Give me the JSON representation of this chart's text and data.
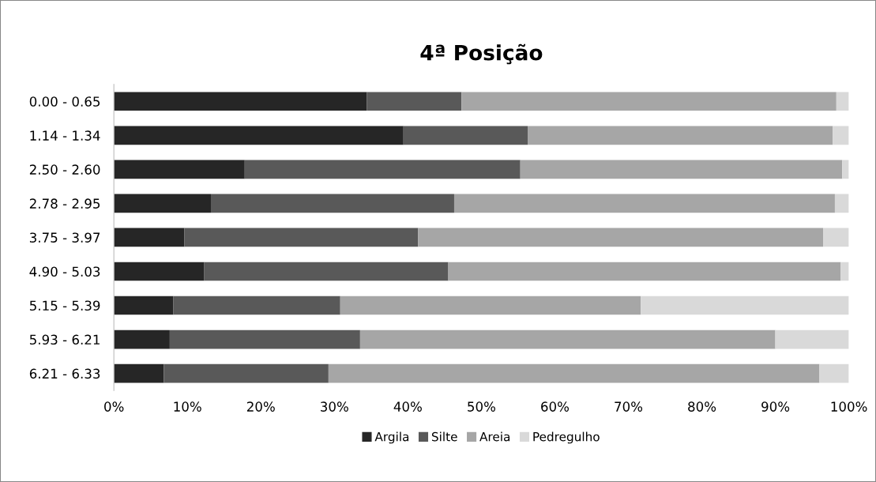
{
  "chart_data": {
    "type": "bar",
    "title": "4ª Posição",
    "orientation": "horizontal",
    "stacked": true,
    "categories": [
      "0.00 - 0.65",
      "1.14 - 1.34",
      "2.50 - 2.60",
      "2.78 - 2.95",
      "3.75 - 3.97",
      "4.90 - 5.03",
      "5.15 - 5.39",
      "5.93 - 6.21",
      "6.21 - 6.33"
    ],
    "series": [
      {
        "name": "Argila",
        "color": "#262626",
        "values": [
          34.4,
          39.4,
          17.8,
          13.2,
          9.6,
          12.3,
          8.1,
          7.6,
          6.8
        ]
      },
      {
        "name": "Silte",
        "color": "#595959",
        "values": [
          12.9,
          16.9,
          37.5,
          33.1,
          31.8,
          33.2,
          22.7,
          25.9,
          22.4
        ]
      },
      {
        "name": "Areia",
        "color": "#a6a6a6",
        "values": [
          51.0,
          41.5,
          43.8,
          51.8,
          55.1,
          53.4,
          40.9,
          56.5,
          66.8
        ]
      },
      {
        "name": "Pedregulho",
        "color": "#d9d9d9",
        "values": [
          1.7,
          2.2,
          0.9,
          1.9,
          3.5,
          1.1,
          28.3,
          10.0,
          4.0
        ]
      }
    ],
    "xlim": [
      0,
      100
    ],
    "xticks": [
      {
        "value": 0,
        "label": "0%"
      },
      {
        "value": 10,
        "label": "10%"
      },
      {
        "value": 20,
        "label": "20%"
      },
      {
        "value": 30,
        "label": "30%"
      },
      {
        "value": 40,
        "label": "40%"
      },
      {
        "value": 50,
        "label": "50%"
      },
      {
        "value": 60,
        "label": "60%"
      },
      {
        "value": 70,
        "label": "70%"
      },
      {
        "value": 80,
        "label": "80%"
      },
      {
        "value": 90,
        "label": "90%"
      },
      {
        "value": 100,
        "label": "100%"
      }
    ],
    "grid": false,
    "legend": "bottom"
  }
}
